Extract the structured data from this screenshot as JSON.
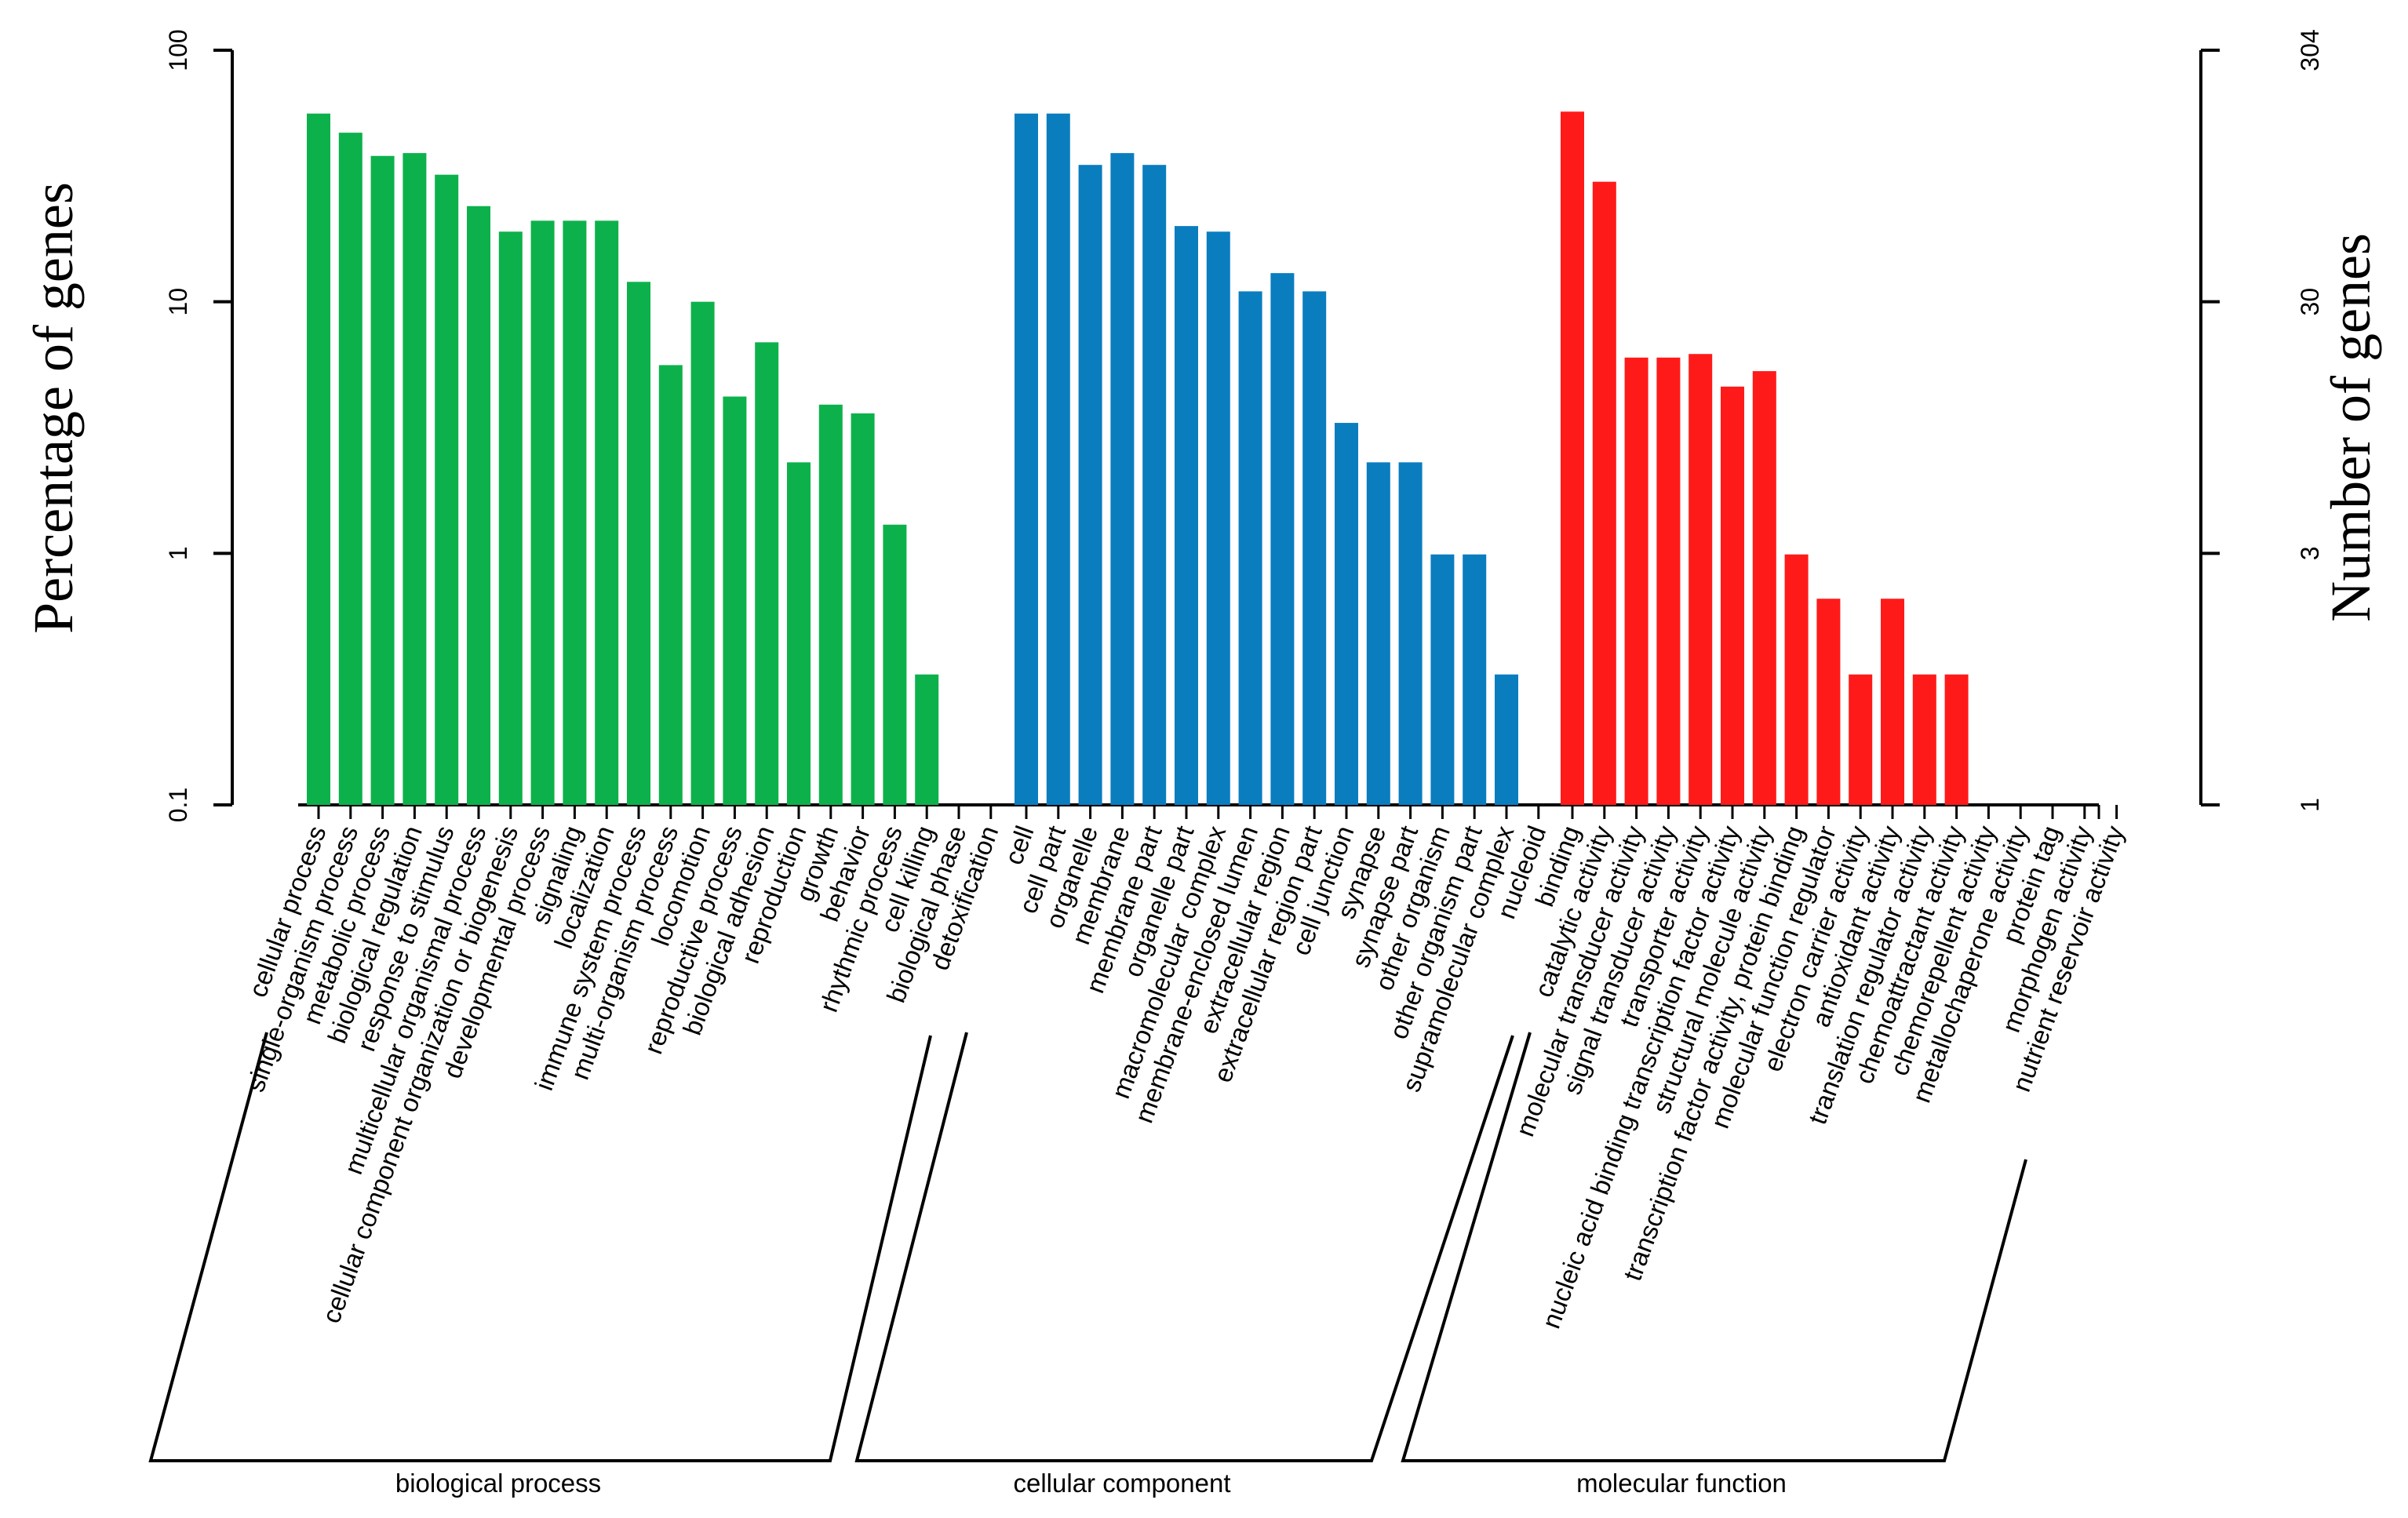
{
  "chart_data": {
    "type": "bar",
    "y_scale": "log",
    "left_axis": {
      "label": "Percentage of genes",
      "ticks": [
        "100",
        "10",
        "1",
        "0.1"
      ],
      "tick_values": [
        100,
        10,
        1,
        0.1
      ],
      "range": [
        0.1,
        100
      ]
    },
    "right_axis": {
      "label": "Number of genes",
      "ticks": [
        "304",
        "30",
        "3",
        "1"
      ]
    },
    "colors": {
      "biological process": "#0db14b",
      "cellular component": "#0a7dbf",
      "molecular function": "#ff1a1a"
    },
    "groups": [
      {
        "name": "biological process",
        "categories": [
          "cellular process",
          "single-organism process",
          "metabolic process",
          "biological regulation",
          "response to stimulus",
          "multicellular organismal process",
          "cellular component organization or biogenesis",
          "developmental process",
          "signaling",
          "localization",
          "immune system process",
          "multi-organism process",
          "locomotion",
          "reproductive process",
          "biological adhesion",
          "reproduction",
          "growth",
          "behavior",
          "rhythmic process",
          "cell killing",
          "biological phase",
          "detoxification"
        ],
        "values": [
          56,
          47,
          38,
          39,
          32,
          24,
          19,
          21,
          21,
          21,
          12,
          5.6,
          10,
          4.2,
          6.9,
          2.3,
          3.9,
          3.6,
          1.3,
          0.33,
          0,
          0
        ]
      },
      {
        "name": "cellular component",
        "categories": [
          "cell",
          "cell part",
          "organelle",
          "membrane",
          "membrane part",
          "organelle part",
          "macromolecular complex",
          "membrane-enclosed lumen",
          "extracellular region",
          "extracellular region part",
          "cell junction",
          "synapse",
          "synapse part",
          "other organism",
          "other organism part",
          "supramolecular complex",
          "nucleoid"
        ],
        "values": [
          56,
          56,
          35,
          39,
          35,
          20,
          19,
          11,
          13,
          11,
          3.3,
          2.3,
          2.3,
          0.99,
          0.99,
          0.33,
          0
        ]
      },
      {
        "name": "molecular function",
        "categories": [
          "binding",
          "catalytic activity",
          "molecular transducer activity",
          "signal transducer activity",
          "transporter activity",
          "nucleic acid binding transcription factor activity",
          "structural molecule activity",
          "transcription factor activity, protein binding",
          "molecular function regulator",
          "electron carrier activity",
          "antioxidant activity",
          "translation regulator activity",
          "chemoattractant activity",
          "chemorepellent activity",
          "metallochaperone activity",
          "protein tag",
          "morphogen activity",
          "nutrient reservoir activity"
        ],
        "values": [
          57,
          30,
          6,
          6,
          6.2,
          4.6,
          5.3,
          0.99,
          0.66,
          0.33,
          0.66,
          0.33,
          0.33,
          0,
          0,
          0,
          0,
          0
        ]
      }
    ]
  }
}
